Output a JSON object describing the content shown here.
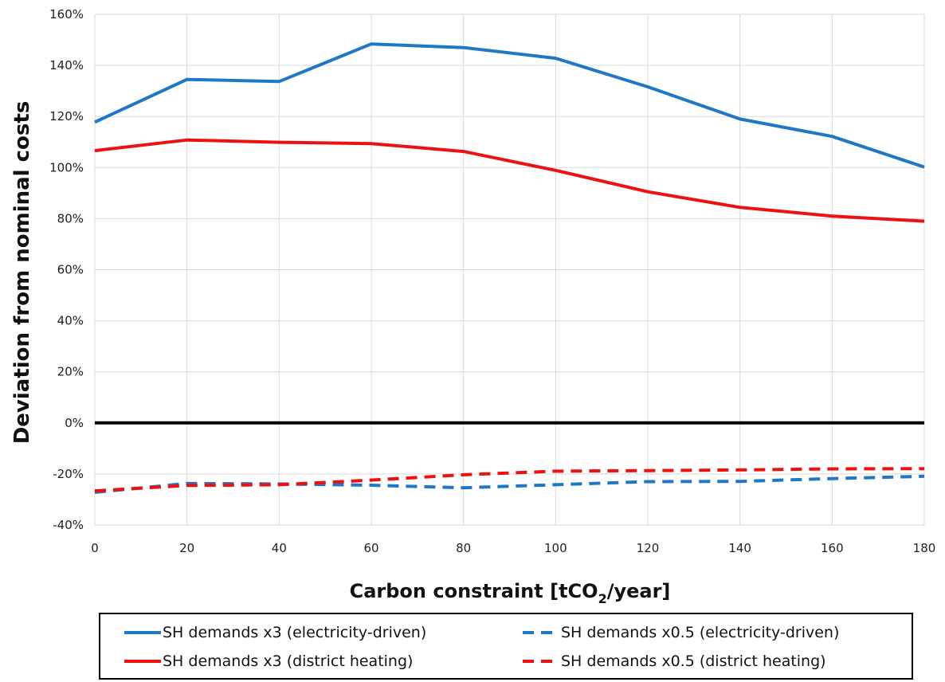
{
  "chart_data": {
    "type": "line",
    "xlabel_main": "Carbon constraint [tCO",
    "xlabel_sub": "2",
    "xlabel_tail": "/year]",
    "ylabel": "Deviation from nominal costs",
    "xlim": [
      0,
      180
    ],
    "ylim": [
      -40,
      160
    ],
    "xticks": [
      "0",
      "20",
      "40",
      "60",
      "80",
      "100",
      "120",
      "140",
      "160",
      "180"
    ],
    "yticks": [
      "-40%",
      "-20%",
      "0%",
      "20%",
      "40%",
      "60%",
      "80%",
      "100%",
      "120%",
      "140%",
      "160%"
    ],
    "grid": true,
    "zero_line": true,
    "legend_position": "bottom",
    "x": [
      0,
      20,
      40,
      60,
      80,
      100,
      120,
      140,
      160,
      180
    ],
    "series": [
      {
        "name": "SH demands x3 (electricity-driven)",
        "color": "#1f77c6",
        "dashed": false,
        "values": [
          117.8,
          134.5,
          133.7,
          148.4,
          147.0,
          142.8,
          131.6,
          119.0,
          112.2,
          100.2
        ]
      },
      {
        "name": "SH demands x0.5 (electricity-driven)",
        "color": "#1f77c6",
        "dashed": true,
        "values": [
          -27.2,
          -23.7,
          -23.9,
          -24.4,
          -25.4,
          -24.2,
          -23.0,
          -22.9,
          -21.8,
          -20.9
        ]
      },
      {
        "name": "SH demands x3 (district heating)",
        "color": "#ee1111",
        "dashed": false,
        "values": [
          106.6,
          110.8,
          109.9,
          109.4,
          106.3,
          98.9,
          90.5,
          84.4,
          81.0,
          79.0
        ]
      },
      {
        "name": "SH demands x0.5 (district heating)",
        "color": "#ee1111",
        "dashed": true,
        "values": [
          -26.6,
          -24.5,
          -24.2,
          -22.4,
          -20.3,
          -18.9,
          -18.7,
          -18.4,
          -18.0,
          -17.9
        ]
      }
    ]
  }
}
